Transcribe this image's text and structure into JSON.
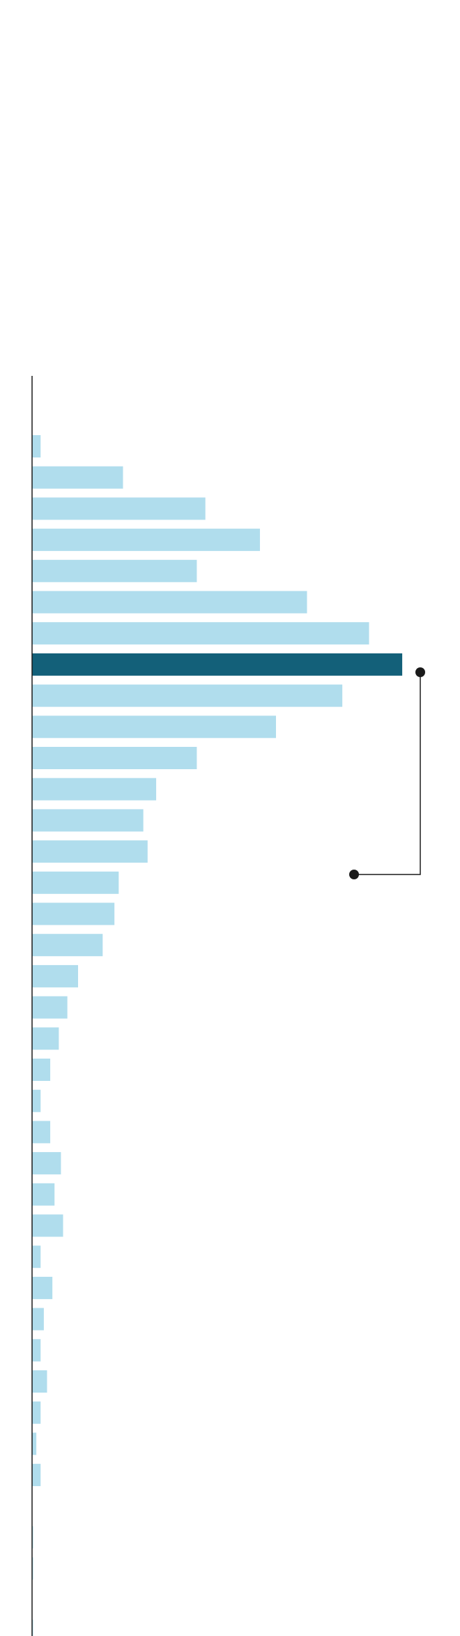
{
  "chart_data": {
    "type": "barh",
    "categories": [
      null,
      null,
      null,
      null,
      null,
      null,
      null,
      null,
      null,
      null,
      null,
      null,
      null,
      null,
      null,
      null,
      null,
      null,
      null,
      null,
      null,
      null,
      null,
      null,
      null,
      null,
      null,
      null,
      null,
      null,
      null,
      null,
      null,
      null,
      null,
      null,
      null,
      null,
      null
    ],
    "values": [
      8,
      85,
      162,
      213,
      154,
      257,
      315,
      346,
      290,
      228,
      154,
      116,
      104,
      108,
      81,
      77,
      66,
      43,
      33,
      25,
      17,
      8,
      17,
      27,
      21,
      29,
      8,
      19,
      11,
      8,
      14,
      8,
      4,
      8,
      0,
      1,
      1,
      0,
      1
    ],
    "color": "#b0dded",
    "highlight": {
      "index": 7,
      "color": "#136079"
    },
    "xlim": [
      0,
      400
    ]
  }
}
